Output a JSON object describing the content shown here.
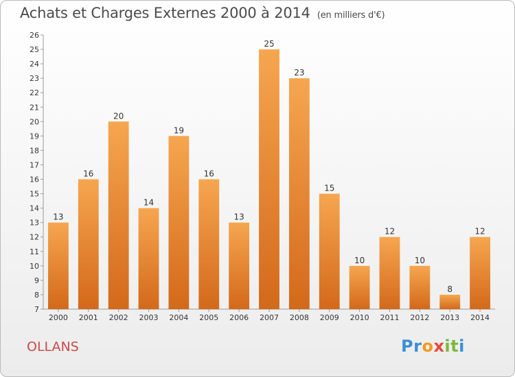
{
  "header": {
    "title": "Achats et Charges Externes 2000 à 2014",
    "unit": "(en milliers d'€)"
  },
  "footer": {
    "commune": "OLLANS",
    "logo": {
      "text": "Proxiti",
      "letters": [
        "P",
        "r",
        "o",
        "x",
        "i",
        "t",
        "i"
      ],
      "colors": [
        "#3a8fd6",
        "#3a8fd6",
        "#f29a1f",
        "#e8473c",
        "#7bb93a",
        "#7bb93a",
        "#3a8fd6"
      ]
    }
  },
  "chart_data": {
    "type": "bar",
    "title": "Achats et Charges Externes 2000 à 2014",
    "subtitle": "(en milliers d'€)",
    "xlabel": "",
    "ylabel": "",
    "categories": [
      "2000",
      "2001",
      "2002",
      "2003",
      "2004",
      "2005",
      "2006",
      "2007",
      "2008",
      "2009",
      "2010",
      "2011",
      "2012",
      "2013",
      "2014"
    ],
    "values": [
      13,
      16,
      20,
      14,
      19,
      16,
      13,
      25,
      23,
      15,
      10,
      12,
      10,
      8,
      12
    ],
    "ylim": [
      7,
      26
    ],
    "yticks": [
      7,
      8,
      9,
      10,
      11,
      12,
      13,
      14,
      15,
      16,
      17,
      18,
      19,
      20,
      21,
      22,
      23,
      24,
      25,
      26
    ],
    "grid": false,
    "colors": {
      "bar_top": "#f6a650",
      "bar_bottom": "#d3691a",
      "axis": "#9a9a9a"
    }
  }
}
